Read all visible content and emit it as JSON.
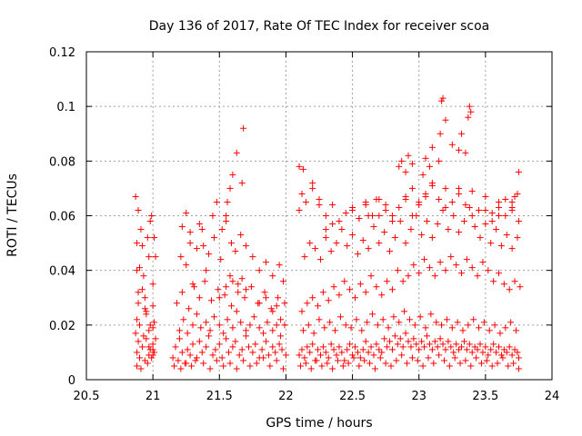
{
  "chart_data": {
    "type": "scatter",
    "title": "Day 136 of 2017, Rate Of TEC Index for receiver scoa",
    "xlabel": "GPS time / hours",
    "ylabel": "ROTI / TECUs",
    "xlim": [
      20.5,
      24
    ],
    "ylim": [
      0,
      0.12
    ],
    "xticks": [
      "20.5",
      "21",
      "21.5",
      "22",
      "22.5",
      "23",
      "23.5",
      "24"
    ],
    "yticks": [
      "0",
      "0.02",
      "0.04",
      "0.06",
      "0.08",
      "0.1",
      "0.12"
    ],
    "grid": true,
    "marker": "+",
    "color": "#ff0000",
    "series": [
      {
        "x": [
          20.87,
          20.88,
          20.88,
          20.89,
          20.9,
          20.9,
          20.91,
          20.92,
          20.93,
          20.94,
          20.95,
          20.96,
          20.97,
          20.98,
          20.99,
          21.0,
          21.01,
          21.02,
          20.88,
          20.9,
          20.92,
          20.95,
          20.97,
          21.0,
          20.88,
          20.91,
          20.94,
          20.97,
          21.0,
          20.87,
          20.88,
          20.89,
          20.92,
          20.95,
          20.98,
          21.0,
          21.02,
          20.89,
          20.93,
          20.97,
          21.01,
          20.96,
          20.99,
          21.0,
          20.98,
          20.89,
          20.94,
          21.0,
          21.01,
          21.15,
          21.17,
          21.2,
          21.22,
          21.24,
          21.26,
          21.28,
          21.3,
          21.32,
          21.35,
          21.37,
          21.4,
          21.42,
          21.45,
          21.47,
          21.5,
          21.52,
          21.55,
          21.57,
          21.6,
          21.62,
          21.65,
          21.67,
          21.7,
          21.72,
          21.75,
          21.77,
          21.8,
          21.82,
          21.85,
          21.87,
          21.9,
          21.92,
          21.95,
          21.97,
          22.0,
          21.16,
          21.19,
          21.21,
          21.25,
          21.29,
          21.33,
          21.38,
          21.43,
          21.48,
          21.53,
          21.58,
          21.63,
          21.68,
          21.73,
          21.78,
          21.83,
          21.88,
          21.93,
          21.98,
          21.2,
          21.23,
          21.26,
          21.3,
          21.33,
          21.36,
          21.4,
          21.43,
          21.46,
          21.5,
          21.53,
          21.56,
          21.6,
          21.63,
          21.66,
          21.7,
          21.73,
          21.76,
          21.8,
          21.83,
          21.86,
          21.9,
          21.93,
          21.96,
          21.18,
          21.22,
          21.27,
          21.31,
          21.35,
          21.39,
          21.44,
          21.49,
          21.54,
          21.59,
          21.64,
          21.69,
          21.74,
          21.79,
          21.84,
          21.89,
          21.94,
          21.99,
          21.21,
          21.25,
          21.28,
          21.33,
          21.37,
          21.42,
          21.46,
          21.51,
          21.55,
          21.59,
          21.62,
          21.66,
          21.7,
          21.75,
          21.8,
          21.85,
          21.9,
          21.95,
          21.98,
          21.3,
          21.4,
          21.5,
          21.55,
          21.58,
          21.6,
          21.64,
          21.67,
          21.7,
          21.8,
          21.85,
          21.9,
          21.93,
          21.96,
          21.99,
          21.55,
          21.56,
          21.58,
          21.6,
          21.63,
          21.67,
          21.68,
          21.45,
          21.48,
          21.52,
          21.35,
          21.38,
          21.25,
          21.28,
          21.22,
          22.1,
          22.12,
          22.14,
          22.16,
          22.18,
          22.2,
          22.22,
          22.24,
          22.26,
          22.28,
          22.3,
          22.32,
          22.34,
          22.36,
          22.38,
          22.4,
          22.42,
          22.44,
          22.46,
          22.48,
          22.5,
          22.52,
          22.54,
          22.56,
          22.58,
          22.6,
          22.62,
          22.64,
          22.66,
          22.68,
          22.7,
          22.72,
          22.74,
          22.76,
          22.78,
          22.8,
          22.82,
          22.84,
          22.86,
          22.88,
          22.9,
          22.92,
          22.94,
          22.96,
          22.98,
          23.0,
          23.02,
          23.04,
          23.06,
          23.08,
          23.1,
          23.12,
          23.14,
          23.16,
          23.18,
          23.2,
          23.22,
          23.24,
          23.26,
          23.28,
          23.3,
          23.32,
          23.34,
          23.36,
          23.38,
          23.4,
          23.42,
          23.44,
          23.46,
          23.48,
          23.5,
          23.52,
          23.54,
          23.56,
          23.58,
          23.6,
          23.62,
          23.64,
          23.66,
          23.68,
          23.7,
          23.72,
          23.74,
          23.75,
          22.11,
          22.15,
          22.19,
          22.23,
          22.27,
          22.31,
          22.35,
          22.39,
          22.43,
          22.47,
          22.51,
          22.55,
          22.59,
          22.63,
          22.67,
          22.71,
          22.75,
          22.79,
          22.83,
          22.87,
          22.91,
          22.95,
          22.99,
          23.03,
          23.07,
          23.11,
          23.15,
          23.19,
          23.23,
          23.27,
          23.31,
          23.35,
          23.39,
          23.43,
          23.47,
          23.51,
          23.55,
          23.59,
          23.63,
          23.67,
          23.71,
          23.75,
          22.13,
          22.17,
          22.21,
          22.25,
          22.29,
          22.33,
          22.37,
          22.41,
          22.45,
          22.49,
          22.53,
          22.57,
          22.61,
          22.65,
          22.69,
          22.73,
          22.77,
          22.81,
          22.85,
          22.89,
          22.93,
          22.97,
          23.01,
          23.05,
          23.09,
          23.13,
          23.17,
          23.21,
          23.25,
          23.29,
          23.33,
          23.37,
          23.41,
          23.45,
          23.49,
          23.53,
          23.57,
          23.61,
          23.65,
          23.69,
          23.73,
          22.12,
          22.16,
          22.2,
          22.24,
          22.28,
          22.32,
          22.36,
          22.4,
          22.44,
          22.48,
          22.52,
          22.56,
          22.6,
          22.64,
          22.68,
          22.72,
          22.76,
          22.8,
          22.84,
          22.88,
          22.92,
          22.96,
          23.0,
          23.04,
          23.08,
          23.12,
          23.16,
          23.2,
          23.24,
          23.28,
          23.32,
          23.36,
          23.4,
          23.44,
          23.48,
          23.52,
          23.56,
          23.6,
          23.64,
          23.68,
          23.72,
          23.76,
          22.14,
          22.18,
          22.22,
          22.26,
          22.3,
          22.34,
          22.38,
          22.42,
          22.46,
          22.5,
          22.54,
          22.58,
          22.62,
          22.66,
          22.7,
          22.74,
          22.78,
          22.82,
          22.86,
          22.9,
          22.94,
          22.98,
          23.02,
          23.06,
          23.1,
          23.14,
          23.18,
          23.22,
          23.26,
          23.3,
          23.34,
          23.38,
          23.42,
          23.46,
          23.5,
          23.54,
          23.58,
          23.62,
          23.66,
          23.7,
          23.74,
          22.1,
          22.12,
          22.15,
          22.2,
          22.25,
          22.3,
          22.35,
          22.4,
          22.45,
          22.5,
          22.55,
          22.6,
          22.65,
          22.7,
          22.75,
          22.8,
          22.85,
          22.9,
          22.95,
          23.0,
          23.05,
          23.1,
          23.15,
          23.2,
          23.25,
          23.3,
          23.35,
          23.4,
          23.45,
          23.5,
          23.55,
          23.6,
          23.65,
          23.7,
          23.75,
          22.85,
          22.87,
          22.9,
          22.92,
          22.95,
          23.03,
          23.05,
          23.08,
          23.1,
          23.15,
          23.16,
          23.17,
          23.18,
          23.2,
          23.25,
          23.3,
          23.32,
          23.35,
          23.37,
          23.38,
          23.39,
          23.6,
          23.65,
          23.7,
          23.72,
          23.74,
          23.75,
          22.1,
          22.13,
          22.2,
          22.25,
          22.3,
          22.35,
          22.5,
          22.55,
          22.6,
          22.62,
          22.68,
          22.7,
          22.75,
          22.8,
          22.9,
          22.95,
          23.0,
          23.05,
          23.1,
          23.2,
          23.3,
          23.4,
          23.5,
          23.55,
          23.6,
          23.7
        ],
        "y": [
          0.067,
          0.05,
          0.04,
          0.062,
          0.041,
          0.02,
          0.055,
          0.049,
          0.038,
          0.03,
          0.025,
          0.052,
          0.045,
          0.058,
          0.06,
          0.035,
          0.052,
          0.045,
          0.01,
          0.008,
          0.012,
          0.015,
          0.018,
          0.011,
          0.005,
          0.004,
          0.007,
          0.009,
          0.013,
          0.017,
          0.022,
          0.028,
          0.033,
          0.024,
          0.02,
          0.027,
          0.015,
          0.014,
          0.016,
          0.012,
          0.01,
          0.006,
          0.008,
          0.009,
          0.011,
          0.032,
          0.026,
          0.019,
          0.021,
          0.008,
          0.012,
          0.015,
          0.01,
          0.006,
          0.011,
          0.009,
          0.013,
          0.007,
          0.014,
          0.01,
          0.012,
          0.016,
          0.009,
          0.011,
          0.013,
          0.008,
          0.015,
          0.01,
          0.012,
          0.014,
          0.009,
          0.011,
          0.016,
          0.012,
          0.01,
          0.013,
          0.008,
          0.011,
          0.014,
          0.009,
          0.012,
          0.01,
          0.013,
          0.011,
          0.009,
          0.005,
          0.007,
          0.004,
          0.006,
          0.005,
          0.008,
          0.006,
          0.004,
          0.007,
          0.005,
          0.006,
          0.004,
          0.007,
          0.005,
          0.006,
          0.008,
          0.005,
          0.007,
          0.004,
          0.018,
          0.022,
          0.017,
          0.02,
          0.024,
          0.019,
          0.021,
          0.018,
          0.023,
          0.02,
          0.017,
          0.022,
          0.019,
          0.025,
          0.021,
          0.018,
          0.02,
          0.023,
          0.019,
          0.017,
          0.021,
          0.018,
          0.02,
          0.016,
          0.028,
          0.032,
          0.026,
          0.034,
          0.03,
          0.036,
          0.029,
          0.033,
          0.031,
          0.027,
          0.035,
          0.03,
          0.034,
          0.028,
          0.032,
          0.026,
          0.03,
          0.028,
          0.045,
          0.042,
          0.05,
          0.048,
          0.055,
          0.046,
          0.052,
          0.044,
          0.058,
          0.05,
          0.047,
          0.053,
          0.049,
          0.045,
          0.04,
          0.043,
          0.038,
          0.042,
          0.036,
          0.035,
          0.04,
          0.03,
          0.034,
          0.038,
          0.036,
          0.032,
          0.037,
          0.033,
          0.028,
          0.03,
          0.025,
          0.027,
          0.022,
          0.02,
          0.06,
          0.065,
          0.07,
          0.075,
          0.083,
          0.072,
          0.092,
          0.06,
          0.065,
          0.055,
          0.057,
          0.049,
          0.061,
          0.054,
          0.056,
          0.009,
          0.011,
          0.008,
          0.012,
          0.01,
          0.013,
          0.007,
          0.011,
          0.009,
          0.012,
          0.01,
          0.008,
          0.013,
          0.011,
          0.009,
          0.012,
          0.01,
          0.007,
          0.011,
          0.013,
          0.009,
          0.012,
          0.01,
          0.008,
          0.011,
          0.014,
          0.01,
          0.012,
          0.009,
          0.013,
          0.011,
          0.01,
          0.015,
          0.012,
          0.014,
          0.011,
          0.016,
          0.013,
          0.015,
          0.012,
          0.017,
          0.014,
          0.012,
          0.015,
          0.013,
          0.011,
          0.014,
          0.012,
          0.016,
          0.013,
          0.011,
          0.014,
          0.012,
          0.015,
          0.013,
          0.011,
          0.014,
          0.012,
          0.01,
          0.013,
          0.011,
          0.012,
          0.014,
          0.011,
          0.013,
          0.01,
          0.012,
          0.011,
          0.013,
          0.01,
          0.012,
          0.009,
          0.011,
          0.013,
          0.01,
          0.012,
          0.009,
          0.011,
          0.01,
          0.012,
          0.009,
          0.011,
          0.01,
          0.008,
          0.005,
          0.006,
          0.004,
          0.007,
          0.005,
          0.006,
          0.004,
          0.007,
          0.005,
          0.006,
          0.008,
          0.005,
          0.007,
          0.006,
          0.004,
          0.008,
          0.006,
          0.005,
          0.007,
          0.009,
          0.006,
          0.008,
          0.007,
          0.005,
          0.008,
          0.006,
          0.009,
          0.007,
          0.005,
          0.008,
          0.006,
          0.007,
          0.005,
          0.008,
          0.006,
          0.007,
          0.005,
          0.006,
          0.008,
          0.005,
          0.006,
          0.004,
          0.018,
          0.02,
          0.017,
          0.022,
          0.019,
          0.021,
          0.018,
          0.023,
          0.02,
          0.019,
          0.022,
          0.018,
          0.021,
          0.024,
          0.02,
          0.022,
          0.019,
          0.023,
          0.021,
          0.025,
          0.022,
          0.02,
          0.023,
          0.019,
          0.024,
          0.021,
          0.02,
          0.022,
          0.019,
          0.021,
          0.018,
          0.02,
          0.022,
          0.019,
          0.021,
          0.018,
          0.02,
          0.017,
          0.019,
          0.021,
          0.018,
          0.025,
          0.028,
          0.03,
          0.027,
          0.032,
          0.029,
          0.034,
          0.031,
          0.036,
          0.033,
          0.03,
          0.035,
          0.032,
          0.038,
          0.034,
          0.031,
          0.036,
          0.033,
          0.04,
          0.036,
          0.038,
          0.042,
          0.039,
          0.044,
          0.041,
          0.038,
          0.043,
          0.04,
          0.045,
          0.042,
          0.039,
          0.044,
          0.041,
          0.038,
          0.043,
          0.04,
          0.036,
          0.039,
          0.035,
          0.033,
          0.036,
          0.034,
          0.045,
          0.05,
          0.048,
          0.044,
          0.052,
          0.047,
          0.05,
          0.055,
          0.049,
          0.053,
          0.046,
          0.051,
          0.048,
          0.056,
          0.05,
          0.054,
          0.047,
          0.052,
          0.058,
          0.05,
          0.055,
          0.06,
          0.053,
          0.058,
          0.052,
          0.057,
          0.062,
          0.055,
          0.06,
          0.054,
          0.058,
          0.063,
          0.056,
          0.052,
          0.057,
          0.05,
          0.055,
          0.049,
          0.053,
          0.048,
          0.052,
          0.062,
          0.068,
          0.065,
          0.07,
          0.066,
          0.06,
          0.064,
          0.058,
          0.061,
          0.063,
          0.059,
          0.065,
          0.06,
          0.066,
          0.062,
          0.058,
          0.063,
          0.067,
          0.06,
          0.064,
          0.068,
          0.072,
          0.066,
          0.07,
          0.065,
          0.068,
          0.064,
          0.069,
          0.062,
          0.067,
          0.061,
          0.065,
          0.06,
          0.063,
          0.058,
          0.078,
          0.08,
          0.076,
          0.082,
          0.079,
          0.075,
          0.081,
          0.078,
          0.085,
          0.08,
          0.09,
          0.102,
          0.103,
          0.095,
          0.086,
          0.084,
          0.09,
          0.083,
          0.096,
          0.1,
          0.098,
          0.063,
          0.066,
          0.065,
          0.067,
          0.068,
          0.076,
          0.078,
          0.077,
          0.072,
          0.064,
          0.055,
          0.057,
          0.062,
          0.059,
          0.064,
          0.06,
          0.066,
          0.06,
          0.064,
          0.06,
          0.066,
          0.07,
          0.065,
          0.067,
          0.071,
          0.063,
          0.07,
          0.06,
          0.062,
          0.058,
          0.06,
          0.062
        ]
      }
    ]
  }
}
